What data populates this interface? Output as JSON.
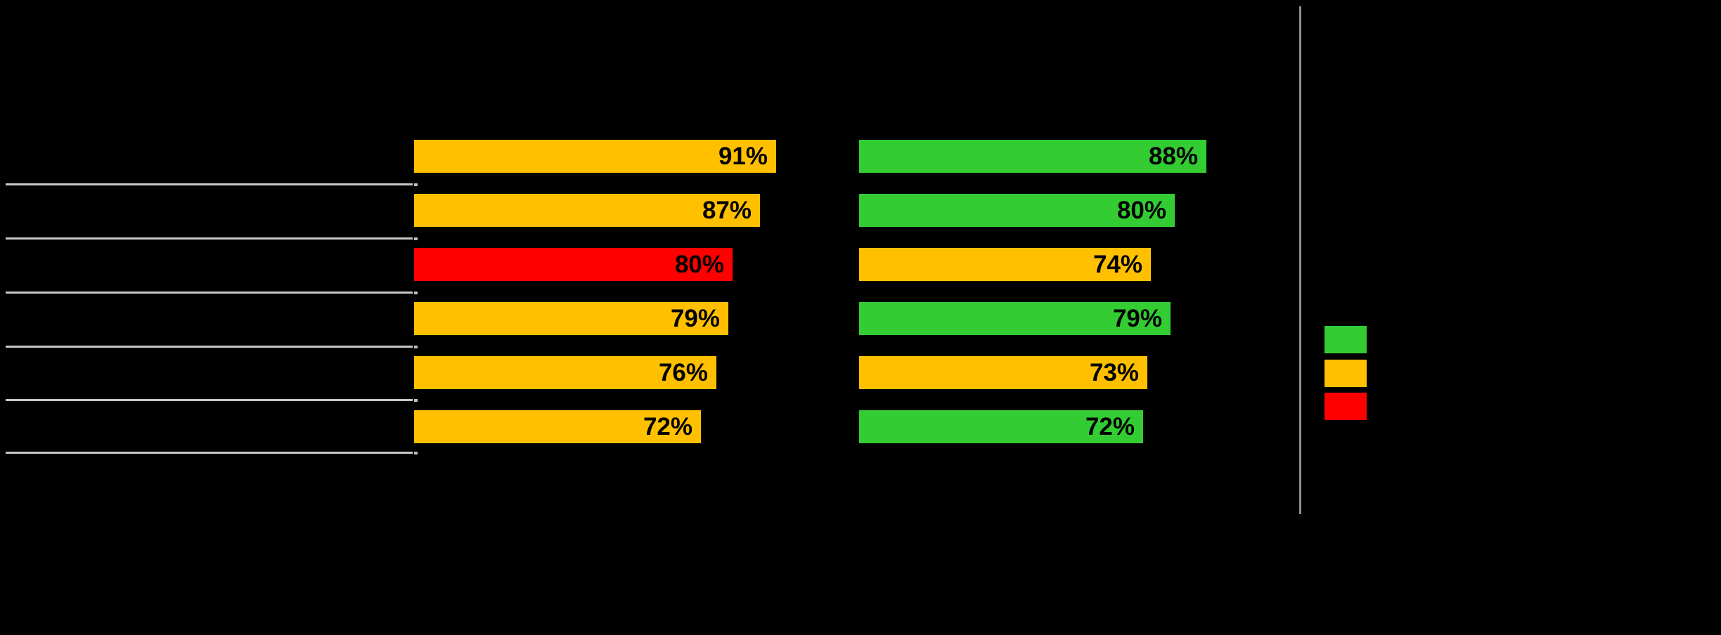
{
  "background": "#000000",
  "colors": {
    "green": "#33CC33",
    "amber": "#FFC000",
    "red": "#FF0000",
    "separator_line": "#C7C7C7",
    "divider_line": "#8F8F8F",
    "data_label_text": "#000000"
  },
  "chart_data": {
    "type": "bar",
    "orientation": "horizontal",
    "value_unit": "%",
    "xlim": [
      0,
      100
    ],
    "grid": false,
    "data_labels": "inside-end",
    "categories": [
      "",
      "",
      "",
      "",
      "",
      ""
    ],
    "series": [
      {
        "name": "left-panel",
        "values": [
          91,
          87,
          80,
          79,
          76,
          72
        ],
        "labels": [
          "91%",
          "87%",
          "80%",
          "79%",
          "76%",
          "72%"
        ],
        "bar_colors": [
          "#FFC000",
          "#FFC000",
          "#FF0000",
          "#FFC000",
          "#FFC000",
          "#FFC000"
        ]
      },
      {
        "name": "right-panel",
        "values": [
          88,
          80,
          74,
          79,
          73,
          72
        ],
        "labels": [
          "88%",
          "80%",
          "74%",
          "79%",
          "73%",
          "72%"
        ],
        "bar_colors": [
          "#33CC33",
          "#33CC33",
          "#FFC000",
          "#33CC33",
          "#FFC000",
          "#33CC33"
        ]
      }
    ],
    "legend": {
      "position": "right",
      "swatch_colors": [
        "#33CC33",
        "#FFC000",
        "#FF0000"
      ],
      "labels": [
        "",
        "",
        ""
      ]
    }
  }
}
